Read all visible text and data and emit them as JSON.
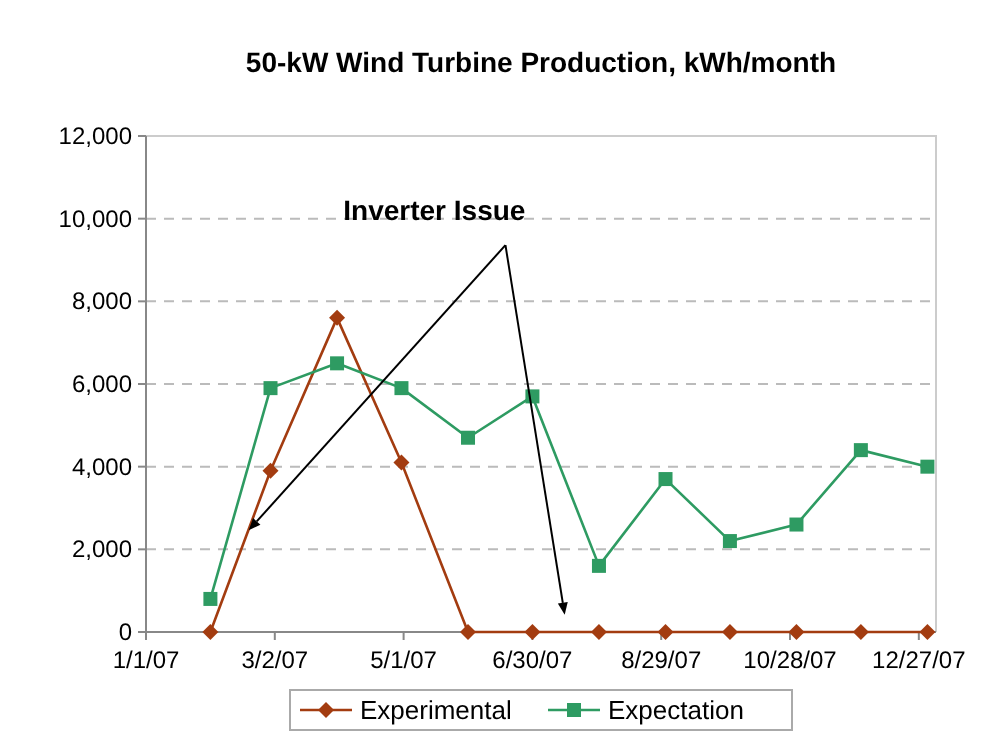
{
  "chart_data": {
    "type": "line",
    "title": "50-kW Wind Turbine Production, kWh/month",
    "x": [
      "2007-01-31",
      "2007-02-28",
      "2007-03-31",
      "2007-04-30",
      "2007-05-31",
      "2007-06-30",
      "2007-07-31",
      "2007-08-31",
      "2007-09-30",
      "2007-10-31",
      "2007-11-30",
      "2007-12-31"
    ],
    "series": [
      {
        "name": "Experimental",
        "color": "#a33c10",
        "marker": "diamond",
        "values": [
          0,
          3900,
          7600,
          4100,
          0,
          0,
          0,
          0,
          0,
          0,
          0,
          0
        ]
      },
      {
        "name": "Expectation",
        "color": "#2e9b62",
        "marker": "square",
        "values": [
          800,
          5900,
          6500,
          5900,
          4700,
          5700,
          1600,
          3700,
          2200,
          2600,
          4400,
          4000
        ]
      }
    ],
    "xlim": [
      "2007-01-01",
      "2008-01-04"
    ],
    "xticks": [
      {
        "value": "2007-01-01",
        "label": "1/1/07"
      },
      {
        "value": "2007-03-02",
        "label": "3/2/07"
      },
      {
        "value": "2007-05-01",
        "label": "5/1/07"
      },
      {
        "value": "2007-06-30",
        "label": "6/30/07"
      },
      {
        "value": "2007-08-29",
        "label": "8/29/07"
      },
      {
        "value": "2007-10-28",
        "label": "10/28/07"
      },
      {
        "value": "2007-12-27",
        "label": "12/27/07"
      }
    ],
    "ylim": [
      0,
      12000
    ],
    "yticks": [
      {
        "value": 0,
        "label": "0"
      },
      {
        "value": 2000,
        "label": "2,000"
      },
      {
        "value": 4000,
        "label": "4,000"
      },
      {
        "value": 6000,
        "label": "6,000"
      },
      {
        "value": 8000,
        "label": "8,000"
      },
      {
        "value": 10000,
        "label": "10,000"
      },
      {
        "value": 12000,
        "label": "12,000"
      }
    ],
    "grid": "y",
    "legend": "bottom",
    "line_style": "solid",
    "annotations": [
      "Inverter Issue"
    ]
  }
}
